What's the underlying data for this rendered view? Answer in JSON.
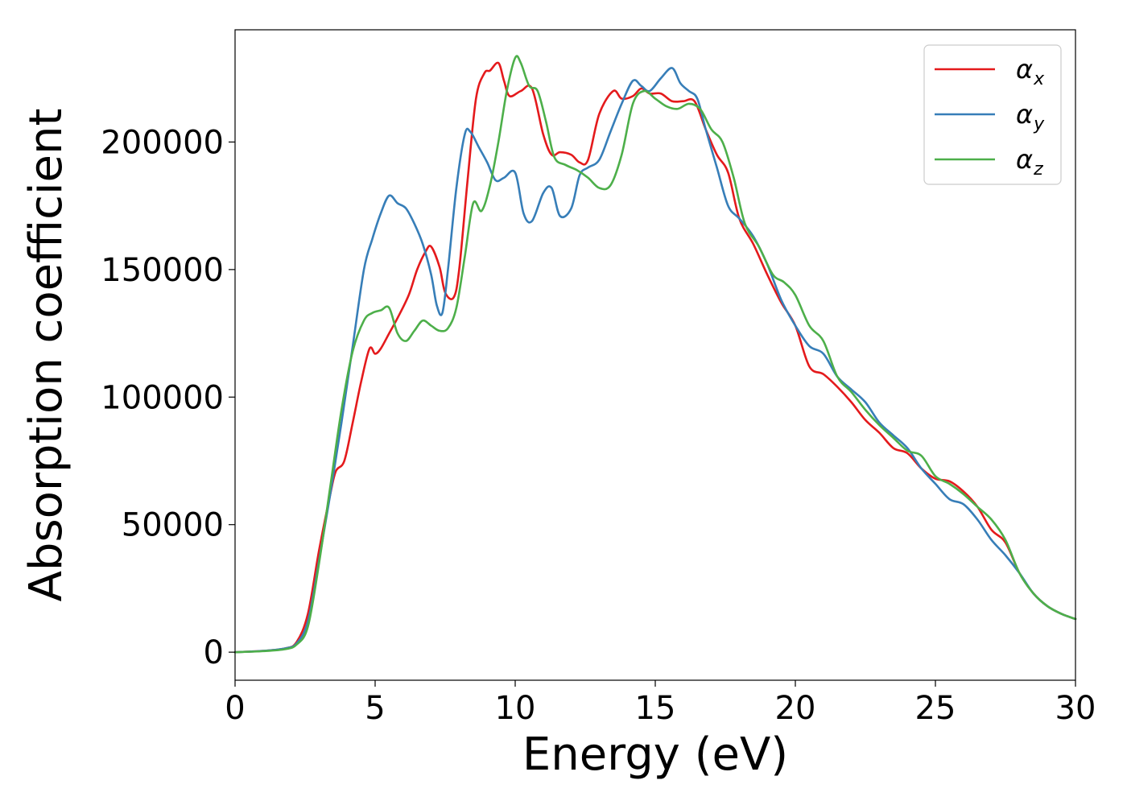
{
  "chart_data": {
    "type": "line",
    "title": "",
    "xlabel": "Energy (eV)",
    "ylabel": "Absorption coefficient",
    "xlim": [
      0,
      30
    ],
    "ylim": [
      -11000,
      244000
    ],
    "xticks": [
      0,
      5,
      10,
      15,
      20,
      25,
      30
    ],
    "yticks": [
      0,
      50000,
      100000,
      150000,
      200000
    ],
    "grid": false,
    "legend_position": "top-right",
    "series": [
      {
        "name": "α",
        "subscript": "x",
        "color": "#e41a1c",
        "x": [
          0,
          1,
          1.8,
          2.2,
          2.6,
          3.0,
          3.4,
          3.6,
          3.9,
          4.2,
          4.5,
          4.8,
          5.0,
          5.2,
          5.5,
          5.8,
          6.2,
          6.5,
          6.8,
          7.0,
          7.3,
          7.5,
          7.8,
          8.0,
          8.3,
          8.6,
          8.9,
          9.1,
          9.4,
          9.6,
          9.8,
          10.2,
          10.6,
          11.0,
          11.3,
          11.6,
          12.0,
          12.3,
          12.6,
          13.0,
          13.5,
          13.8,
          14.2,
          14.5,
          14.8,
          15.2,
          15.6,
          16.0,
          16.4,
          16.8,
          17.2,
          17.6,
          18.0,
          18.5,
          19.0,
          19.5,
          20.0,
          20.5,
          21.0,
          21.5,
          22.0,
          22.5,
          23.0,
          23.5,
          24.0,
          24.5,
          25.0,
          25.5,
          26.0,
          26.5,
          27.0,
          27.5,
          28.0,
          28.5,
          29.0,
          29.5,
          30.0
        ],
        "y": [
          0,
          500,
          1500,
          4000,
          15000,
          40000,
          62000,
          71000,
          75000,
          90000,
          106000,
          119000,
          117000,
          119000,
          125000,
          131000,
          140000,
          150000,
          157000,
          159000,
          151000,
          141000,
          139000,
          150000,
          185000,
          217000,
          227000,
          228000,
          231000,
          224000,
          218000,
          220000,
          221000,
          203000,
          195000,
          196000,
          195000,
          192000,
          193000,
          211000,
          220000,
          217000,
          218000,
          221000,
          219000,
          219000,
          216000,
          216000,
          216000,
          205000,
          195000,
          188000,
          170000,
          160000,
          148000,
          137000,
          128000,
          112000,
          109000,
          104000,
          98000,
          91000,
          86000,
          80000,
          78000,
          72000,
          68000,
          67000,
          63000,
          57000,
          48000,
          43000,
          31000,
          23000,
          18000,
          15000,
          13000
        ]
      },
      {
        "name": "α",
        "subscript": "y",
        "color": "#377eb8",
        "x": [
          0,
          1,
          1.8,
          2.2,
          2.6,
          3.0,
          3.4,
          3.8,
          4.2,
          4.6,
          4.9,
          5.2,
          5.5,
          5.8,
          6.1,
          6.4,
          6.7,
          7.0,
          7.2,
          7.4,
          7.6,
          7.9,
          8.2,
          8.4,
          8.7,
          9.0,
          9.3,
          9.6,
          10.0,
          10.3,
          10.6,
          11.0,
          11.3,
          11.6,
          12.0,
          12.3,
          12.6,
          13.0,
          13.4,
          13.8,
          14.2,
          14.5,
          14.8,
          15.2,
          15.6,
          15.9,
          16.2,
          16.5,
          16.8,
          17.2,
          17.6,
          18.0,
          18.5,
          19.0,
          19.5,
          20.0,
          20.5,
          21.0,
          21.5,
          22.0,
          22.5,
          23.0,
          23.5,
          24.0,
          24.5,
          25.0,
          25.5,
          26.0,
          26.5,
          27.0,
          27.5,
          28.0,
          28.5,
          29.0,
          29.5,
          30.0
        ],
        "y": [
          0,
          500,
          1500,
          3500,
          12000,
          36000,
          62000,
          90000,
          120000,
          150000,
          162000,
          172000,
          179000,
          176000,
          174000,
          168000,
          160000,
          148000,
          136000,
          133000,
          150000,
          182000,
          203000,
          204000,
          198000,
          192000,
          185000,
          186000,
          188000,
          172000,
          169000,
          180000,
          182000,
          171000,
          174000,
          187000,
          190000,
          193000,
          204000,
          215000,
          224000,
          222000,
          220000,
          225000,
          229000,
          223000,
          220000,
          217000,
          205000,
          190000,
          175000,
          170000,
          163000,
          152000,
          138000,
          128000,
          120000,
          117000,
          108000,
          103000,
          98000,
          90000,
          85000,
          80000,
          72000,
          66000,
          60000,
          58000,
          52000,
          44000,
          38000,
          31000,
          23000,
          18000,
          15000,
          13000
        ]
      },
      {
        "name": "α",
        "subscript": "z",
        "color": "#4daf4a",
        "x": [
          0,
          1,
          1.8,
          2.2,
          2.6,
          3.0,
          3.4,
          3.8,
          4.2,
          4.6,
          4.9,
          5.2,
          5.5,
          5.8,
          6.1,
          6.4,
          6.7,
          7.0,
          7.3,
          7.6,
          7.9,
          8.2,
          8.5,
          8.8,
          9.1,
          9.4,
          9.7,
          10.0,
          10.2,
          10.5,
          10.8,
          11.1,
          11.4,
          11.8,
          12.2,
          12.6,
          13.0,
          13.4,
          13.8,
          14.2,
          14.6,
          15.0,
          15.4,
          15.8,
          16.2,
          16.6,
          17.0,
          17.4,
          17.8,
          18.2,
          18.7,
          19.2,
          19.6,
          20.0,
          20.5,
          21.0,
          21.5,
          22.0,
          22.5,
          23.0,
          23.5,
          24.0,
          24.5,
          25.0,
          25.5,
          26.0,
          26.5,
          27.0,
          27.5,
          28.0,
          28.5,
          29.0,
          29.5,
          30.0
        ],
        "y": [
          0,
          400,
          1200,
          3000,
          10000,
          35000,
          65000,
          95000,
          118000,
          130000,
          133000,
          134000,
          135000,
          125000,
          122000,
          126000,
          130000,
          128000,
          126000,
          127000,
          135000,
          155000,
          176000,
          173000,
          183000,
          200000,
          220000,
          233000,
          231000,
          222000,
          220000,
          208000,
          194000,
          191000,
          189000,
          186000,
          182000,
          183000,
          195000,
          215000,
          220000,
          217000,
          214000,
          213000,
          215000,
          213000,
          205000,
          200000,
          186000,
          168000,
          159000,
          148000,
          145000,
          140000,
          128000,
          122000,
          108000,
          102000,
          95000,
          89000,
          84000,
          79000,
          77000,
          69000,
          66000,
          62000,
          57000,
          52000,
          44000,
          31000,
          23000,
          18000,
          15000,
          13000
        ]
      }
    ]
  }
}
